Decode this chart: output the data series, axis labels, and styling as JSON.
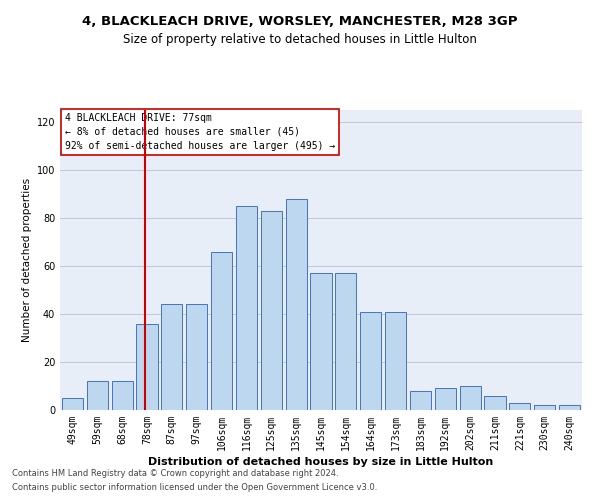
{
  "title1": "4, BLACKLEACH DRIVE, WORSLEY, MANCHESTER, M28 3GP",
  "title2": "Size of property relative to detached houses in Little Hulton",
  "xlabel": "Distribution of detached houses by size in Little Hulton",
  "ylabel": "Number of detached properties",
  "footer1": "Contains HM Land Registry data © Crown copyright and database right 2024.",
  "footer2": "Contains public sector information licensed under the Open Government Licence v3.0.",
  "annotation_line1": "4 BLACKLEACH DRIVE: 77sqm",
  "annotation_line2": "← 8% of detached houses are smaller (45)",
  "annotation_line3": "92% of semi-detached houses are larger (495) →",
  "categories": [
    "49sqm",
    "59sqm",
    "68sqm",
    "78sqm",
    "87sqm",
    "97sqm",
    "106sqm",
    "116sqm",
    "125sqm",
    "135sqm",
    "145sqm",
    "154sqm",
    "164sqm",
    "173sqm",
    "183sqm",
    "192sqm",
    "202sqm",
    "211sqm",
    "221sqm",
    "230sqm",
    "240sqm"
  ],
  "values": [
    5,
    12,
    12,
    36,
    44,
    44,
    66,
    85,
    83,
    88,
    57,
    57,
    41,
    41,
    8,
    9,
    10,
    6,
    3,
    2,
    2
  ],
  "bar_color": "#bdd7ee",
  "bar_edge_color": "#4472c4",
  "vline_color": "#cc0000",
  "vline_x_index": 3,
  "annotation_box_color": "#cc0000",
  "ylim": [
    0,
    125
  ],
  "yticks": [
    0,
    20,
    40,
    60,
    80,
    100,
    120
  ],
  "grid_color": "#c0c8d8",
  "bg_color": "#e8eef7",
  "title1_fontsize": 9.5,
  "title2_fontsize": 8.5,
  "xlabel_fontsize": 8,
  "ylabel_fontsize": 7.5,
  "tick_fontsize": 7,
  "annotation_fontsize": 7,
  "footer_fontsize": 6
}
